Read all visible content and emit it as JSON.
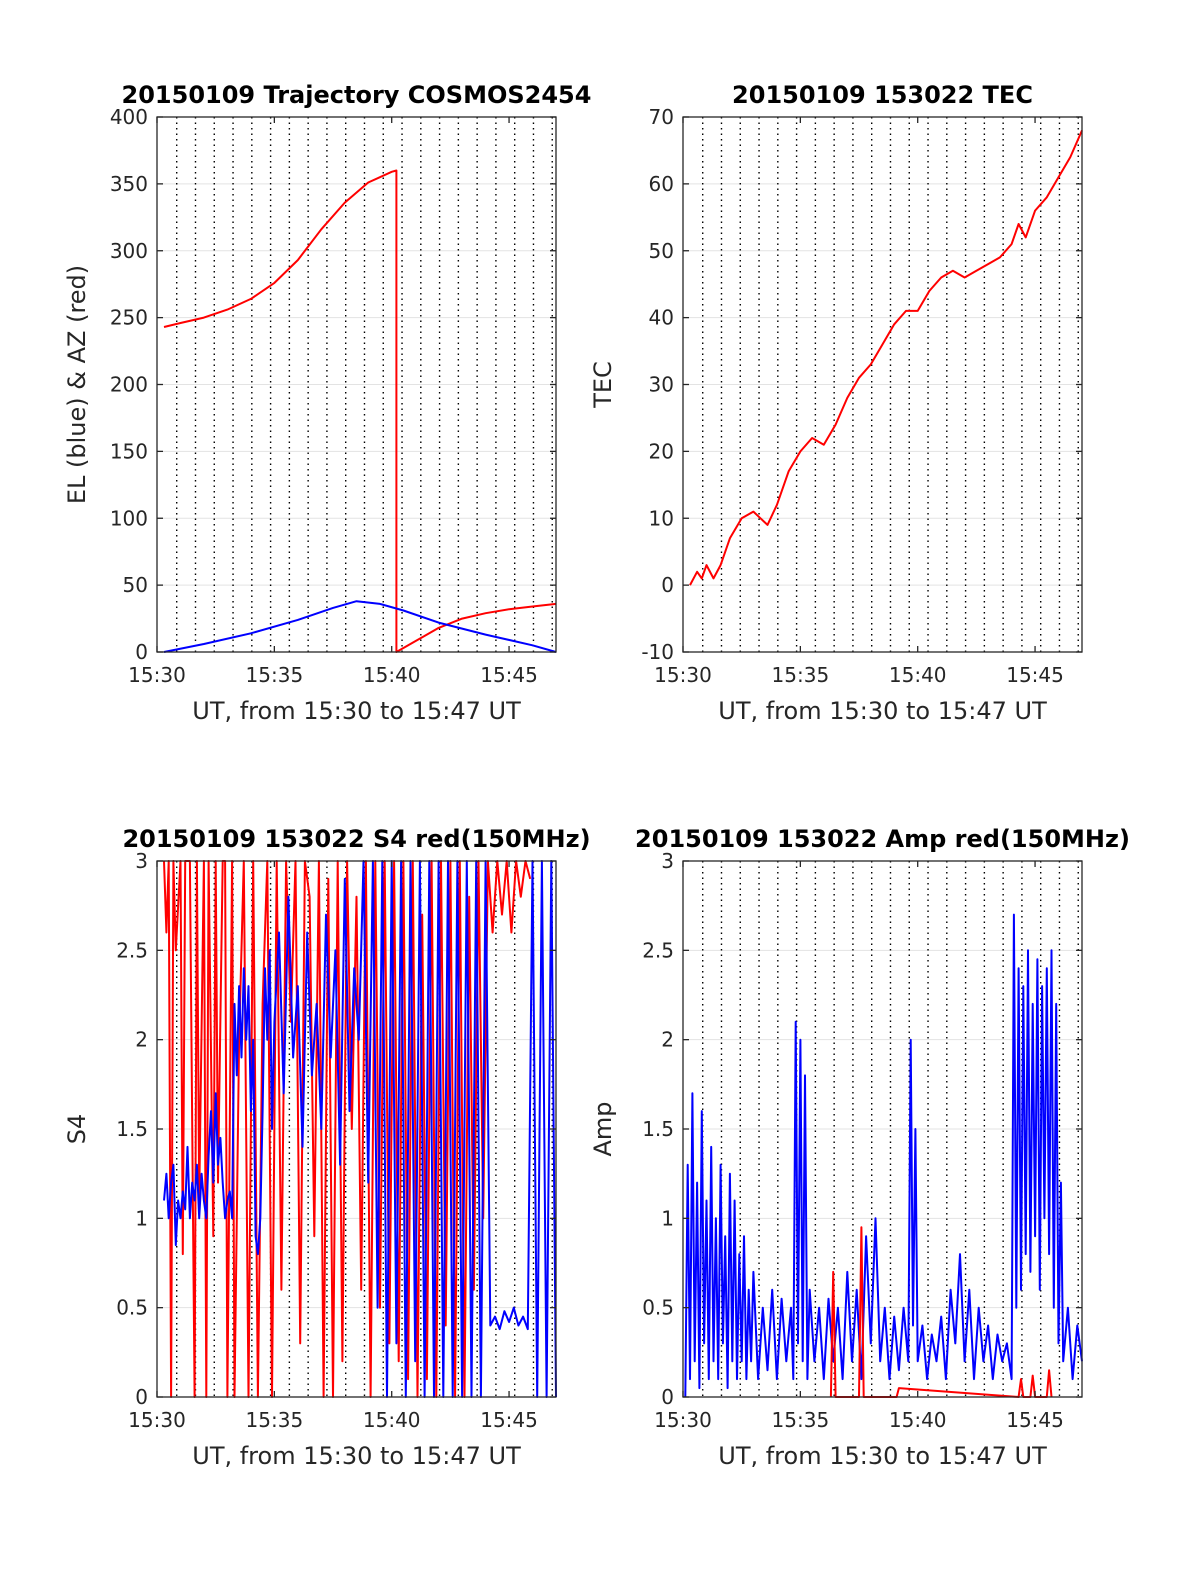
{
  "chart_data": [
    {
      "type": "line",
      "title": "20150109 Trajectory COSMOS2454",
      "xlabel": "UT, from 15:30 to 15:47 UT",
      "ylabel": "EL (blue) & AZ (red)",
      "xlim": [
        0,
        17
      ],
      "ylim": [
        0,
        400
      ],
      "xticks": [
        0,
        5,
        10,
        15
      ],
      "xticklabels": [
        "15:30",
        "15:35",
        "15:40",
        "15:45"
      ],
      "yticks": [
        0,
        50,
        100,
        150,
        200,
        250,
        300,
        350,
        400
      ],
      "yticklabels": [
        "0",
        "50",
        "100",
        "150",
        "200",
        "250",
        "300",
        "350",
        "400"
      ],
      "grid": "vertical-dotted",
      "series": [
        {
          "name": "AZ",
          "color": "#ff0000",
          "x": [
            0.3,
            1,
            2,
            3,
            4,
            5,
            6,
            7,
            8,
            9,
            10,
            10.2,
            10.2,
            10.2,
            11,
            12,
            13,
            14,
            15,
            16,
            17
          ],
          "y": [
            243,
            246,
            250,
            256,
            264,
            276,
            293,
            316,
            336,
            351,
            359,
            360,
            0,
            0,
            8,
            18,
            25,
            29,
            32,
            34,
            36
          ]
        },
        {
          "name": "EL",
          "color": "#0000ff",
          "x": [
            0.3,
            2,
            4,
            6,
            7.5,
            8.5,
            9.5,
            10.5,
            12,
            14,
            16,
            17
          ],
          "y": [
            0,
            6,
            14,
            24,
            33,
            38,
            36,
            31,
            22,
            13,
            5,
            0
          ]
        }
      ]
    },
    {
      "type": "line",
      "title": "20150109 153022 TEC",
      "xlabel": "UT, from 15:30 to 15:47 UT",
      "ylabel": "TEC",
      "xlim": [
        0,
        17
      ],
      "ylim": [
        -10,
        70
      ],
      "xticks": [
        0,
        5,
        10,
        15
      ],
      "xticklabels": [
        "15:30",
        "15:35",
        "15:40",
        "15:45"
      ],
      "yticks": [
        -10,
        0,
        10,
        20,
        30,
        40,
        50,
        60,
        70
      ],
      "yticklabels": [
        "-10",
        "0",
        "10",
        "20",
        "30",
        "40",
        "50",
        "60",
        "70"
      ],
      "grid": "dotted-vertical-solid-horizontal",
      "series": [
        {
          "name": "TEC",
          "color": "#ff0000",
          "x": [
            0.3,
            0.6,
            0.8,
            1.0,
            1.3,
            1.6,
            2.0,
            2.5,
            3.0,
            3.3,
            3.6,
            4.0,
            4.5,
            5.0,
            5.5,
            6.0,
            6.5,
            7.0,
            7.5,
            8.0,
            8.5,
            9.0,
            9.5,
            10.0,
            10.5,
            11.0,
            11.5,
            12.0,
            12.5,
            13.0,
            13.5,
            14.0,
            14.3,
            14.6,
            15.0,
            15.5,
            16.0,
            16.5,
            17.0
          ],
          "y": [
            0,
            2,
            1,
            3,
            1,
            3,
            7,
            10,
            11,
            10,
            9,
            12,
            17,
            20,
            22,
            21,
            24,
            28,
            31,
            33,
            36,
            39,
            41,
            41,
            44,
            46,
            47,
            46,
            47,
            48,
            49,
            51,
            54,
            52,
            56,
            58,
            61,
            64,
            68
          ]
        }
      ]
    },
    {
      "type": "line",
      "title": "20150109 153022 S4 red(150MHz)",
      "xlabel": "UT, from 15:30 to 15:47 UT",
      "ylabel": "S4",
      "xlim": [
        0,
        17
      ],
      "ylim": [
        0,
        3
      ],
      "xticks": [
        0,
        5,
        10,
        15
      ],
      "xticklabels": [
        "15:30",
        "15:35",
        "15:40",
        "15:45"
      ],
      "yticks": [
        0,
        0.5,
        1,
        1.5,
        2,
        2.5,
        3
      ],
      "yticklabels": [
        "0",
        "0.5",
        "1",
        "1.5",
        "2",
        "2.5",
        "3"
      ],
      "grid": "vertical-dotted",
      "series": [
        {
          "name": "S4 red",
          "color": "#ff0000",
          "x": [
            0.3,
            0.4,
            0.5,
            0.6,
            0.7,
            0.8,
            1.0,
            1.1,
            1.2,
            1.4,
            1.6,
            1.7,
            1.8,
            2.0,
            2.1,
            2.2,
            2.4,
            2.5,
            2.6,
            2.8,
            2.9,
            3.0,
            3.2,
            3.3,
            3.5,
            3.7,
            3.9,
            4.1,
            4.3,
            4.5,
            4.7,
            4.9,
            5.1,
            5.3,
            5.5,
            5.7,
            5.9,
            6.1,
            6.3,
            6.5,
            6.7,
            6.9,
            7.1,
            7.3,
            7.5,
            7.7,
            7.9,
            8.1,
            8.3,
            8.5,
            8.7,
            8.9,
            9.1,
            9.3,
            9.5,
            9.7,
            9.9,
            10.1,
            10.3,
            10.5,
            10.7,
            10.9,
            11.1,
            11.3,
            11.5,
            11.7,
            11.9,
            12.1,
            12.3,
            12.5,
            12.7,
            12.9,
            13.1,
            13.3,
            13.5,
            13.7,
            13.9,
            14.1,
            14.3,
            14.5,
            14.7,
            14.9,
            15.1,
            15.3,
            15.5,
            15.7,
            15.9
          ],
          "y": [
            3,
            2.6,
            3,
            0,
            3,
            2.5,
            3,
            0.8,
            3,
            3,
            0,
            3,
            1.1,
            3,
            0,
            3,
            0.9,
            3,
            1.2,
            3,
            3,
            0,
            3,
            0,
            2.0,
            3,
            0,
            3,
            0,
            2.2,
            3,
            0,
            3,
            0.6,
            3,
            2.1,
            3,
            0.3,
            3,
            2.8,
            0.9,
            3,
            0,
            2.9,
            0,
            3,
            0.2,
            3,
            1.5,
            2.8,
            0.6,
            3,
            0,
            3,
            0.5,
            3,
            0.3,
            3,
            0.2,
            3,
            0.1,
            3,
            0,
            2.7,
            0.1,
            3,
            0,
            3,
            0.4,
            3,
            0,
            3,
            0,
            2.8,
            0.6,
            3,
            1.0,
            3,
            2.6,
            3,
            2.7,
            3,
            2.6,
            3,
            2.8,
            3,
            2.9
          ]
        },
        {
          "name": "S4 blue",
          "color": "#0000ff",
          "x": [
            0.3,
            0.4,
            0.5,
            0.6,
            0.7,
            0.8,
            0.9,
            1.0,
            1.1,
            1.2,
            1.3,
            1.4,
            1.5,
            1.6,
            1.7,
            1.8,
            1.9,
            2.0,
            2.1,
            2.2,
            2.3,
            2.4,
            2.5,
            2.6,
            2.7,
            2.8,
            2.9,
            3.0,
            3.1,
            3.2,
            3.3,
            3.4,
            3.5,
            3.6,
            3.7,
            3.8,
            3.9,
            4.0,
            4.1,
            4.2,
            4.3,
            4.4,
            4.5,
            4.6,
            4.7,
            4.8,
            4.9,
            5.0,
            5.2,
            5.4,
            5.6,
            5.8,
            6.0,
            6.2,
            6.4,
            6.6,
            6.8,
            7.0,
            7.2,
            7.4,
            7.6,
            7.8,
            8.0,
            8.2,
            8.4,
            8.6,
            8.8,
            9.0,
            9.2,
            9.4,
            9.6,
            9.8,
            10.0,
            10.2,
            10.4,
            10.6,
            10.8,
            11.0,
            11.2,
            11.4,
            11.6,
            11.8,
            12.0,
            12.2,
            12.4,
            12.6,
            12.8,
            13.0,
            13.2,
            13.4,
            13.6,
            13.8,
            14.0,
            14.2,
            14.4,
            14.6,
            14.8,
            15.0,
            15.2,
            15.4,
            15.6,
            15.8,
            16.0,
            16.2,
            16.4,
            16.6,
            16.8,
            17.0
          ],
          "y": [
            1.1,
            1.25,
            1.0,
            1.2,
            1.3,
            0.85,
            1.1,
            1.0,
            1.15,
            1.05,
            1.4,
            1.0,
            1.2,
            1.1,
            1.3,
            1.0,
            1.25,
            1.1,
            1.0,
            1.35,
            1.6,
            1.2,
            1.7,
            1.3,
            1.45,
            1.2,
            1.0,
            1.1,
            1.15,
            1.0,
            2.2,
            1.8,
            2.3,
            1.9,
            2.4,
            2.0,
            2.3,
            1.6,
            2.0,
            0.9,
            0.8,
            1.0,
            1.6,
            2.4,
            2.0,
            2.5,
            1.5,
            2.1,
            2.6,
            1.7,
            2.8,
            1.9,
            2.3,
            1.4,
            2.6,
            1.8,
            2.2,
            1.5,
            2.7,
            1.9,
            2.5,
            1.3,
            2.9,
            1.6,
            2.4,
            2.0,
            3,
            1.2,
            3,
            0.5,
            3,
            0,
            3,
            0.3,
            3,
            0,
            3,
            0.2,
            3,
            0,
            3,
            0,
            3,
            0,
            3,
            0,
            3,
            0,
            3,
            0,
            3,
            0,
            3,
            0.4,
            0.45,
            0.38,
            0.48,
            0.42,
            0.5,
            0.4,
            0.45,
            0.38,
            3,
            0,
            3,
            0,
            3,
            0
          ]
        }
      ]
    },
    {
      "type": "line",
      "title": "20150109 153022 Amp red(150MHz)",
      "xlabel": "UT, from 15:30 to 15:47 UT",
      "ylabel": "Amp",
      "xlim": [
        0,
        17
      ],
      "ylim": [
        0,
        3
      ],
      "xticks": [
        0,
        5,
        10,
        15
      ],
      "xticklabels": [
        "15:30",
        "15:35",
        "15:40",
        "15:45"
      ],
      "yticks": [
        0,
        0.5,
        1,
        1.5,
        2,
        2.5,
        3
      ],
      "yticklabels": [
        "0",
        "0.5",
        "1",
        "1.5",
        "2",
        "2.5",
        "3"
      ],
      "grid": "dotted-vertical-solid-horizontal",
      "series": [
        {
          "name": "Amp blue",
          "color": "#0000ff",
          "x": [
            0.1,
            0.2,
            0.3,
            0.4,
            0.5,
            0.6,
            0.7,
            0.8,
            0.9,
            1.0,
            1.1,
            1.2,
            1.3,
            1.4,
            1.5,
            1.6,
            1.7,
            1.8,
            1.9,
            2.0,
            2.1,
            2.2,
            2.3,
            2.4,
            2.5,
            2.6,
            2.7,
            2.8,
            2.9,
            3.0,
            3.2,
            3.4,
            3.6,
            3.8,
            4.0,
            4.2,
            4.4,
            4.6,
            4.7,
            4.8,
            4.9,
            5.0,
            5.1,
            5.2,
            5.3,
            5.4,
            5.6,
            5.8,
            6.0,
            6.2,
            6.4,
            6.6,
            6.8,
            7.0,
            7.2,
            7.4,
            7.6,
            7.8,
            8.0,
            8.2,
            8.4,
            8.6,
            8.8,
            9.0,
            9.2,
            9.4,
            9.6,
            9.7,
            9.8,
            9.9,
            10.0,
            10.2,
            10.4,
            10.6,
            10.8,
            11.0,
            11.2,
            11.4,
            11.6,
            11.8,
            12.0,
            12.2,
            12.4,
            12.6,
            12.8,
            13.0,
            13.2,
            13.4,
            13.6,
            13.8,
            14.0,
            14.1,
            14.2,
            14.3,
            14.4,
            14.5,
            14.6,
            14.7,
            14.8,
            14.9,
            15.0,
            15.1,
            15.2,
            15.3,
            15.4,
            15.5,
            15.6,
            15.7,
            15.8,
            15.9,
            16.0,
            16.1,
            16.2,
            16.4,
            16.6,
            16.8,
            17.0
          ],
          "y": [
            0,
            1.3,
            0.1,
            1.7,
            0.2,
            1.2,
            0.05,
            1.6,
            0.3,
            1.1,
            0.1,
            1.4,
            0.2,
            1.0,
            0.1,
            1.3,
            0.3,
            0.9,
            0.05,
            1.25,
            0.2,
            1.1,
            0.1,
            0.8,
            0.2,
            0.9,
            0.1,
            0.6,
            0.2,
            0.7,
            0.1,
            0.5,
            0.15,
            0.6,
            0.1,
            0.55,
            0.2,
            0.5,
            0.1,
            2.1,
            0.3,
            2.0,
            0.2,
            1.8,
            0.1,
            0.6,
            0.2,
            0.5,
            0.1,
            0.55,
            0.2,
            0.5,
            0.1,
            0.7,
            0.2,
            0.6,
            0.1,
            0.9,
            0.3,
            1.0,
            0.2,
            0.5,
            0.1,
            0.45,
            0.15,
            0.5,
            0.2,
            2.0,
            0.4,
            1.5,
            0.2,
            0.4,
            0.1,
            0.35,
            0.2,
            0.45,
            0.1,
            0.6,
            0.3,
            0.8,
            0.2,
            0.6,
            0.1,
            0.5,
            0.2,
            0.4,
            0.1,
            0.35,
            0.2,
            0.3,
            0.1,
            2.7,
            0.5,
            2.4,
            0.6,
            2.3,
            0.8,
            2.5,
            0.7,
            2.2,
            0.9,
            2.45,
            0.6,
            2.3,
            1.0,
            2.4,
            0.8,
            2.5,
            0.5,
            2.2,
            0.3,
            1.2,
            0.2,
            0.5,
            0.1,
            0.4,
            0.2
          ]
        },
        {
          "name": "Amp red",
          "color": "#ff0000",
          "x": [
            6.3,
            6.4,
            6.5,
            7.5,
            7.6,
            7.7,
            9.1,
            9.2,
            14.3,
            14.4,
            14.5,
            14.8,
            14.9,
            15.0,
            15.5,
            15.6,
            15.7
          ],
          "y": [
            0,
            0.7,
            0,
            0,
            0.95,
            0,
            0,
            0.05,
            0,
            0.1,
            0,
            0,
            0.12,
            0,
            0,
            0.15,
            0
          ]
        }
      ]
    }
  ]
}
